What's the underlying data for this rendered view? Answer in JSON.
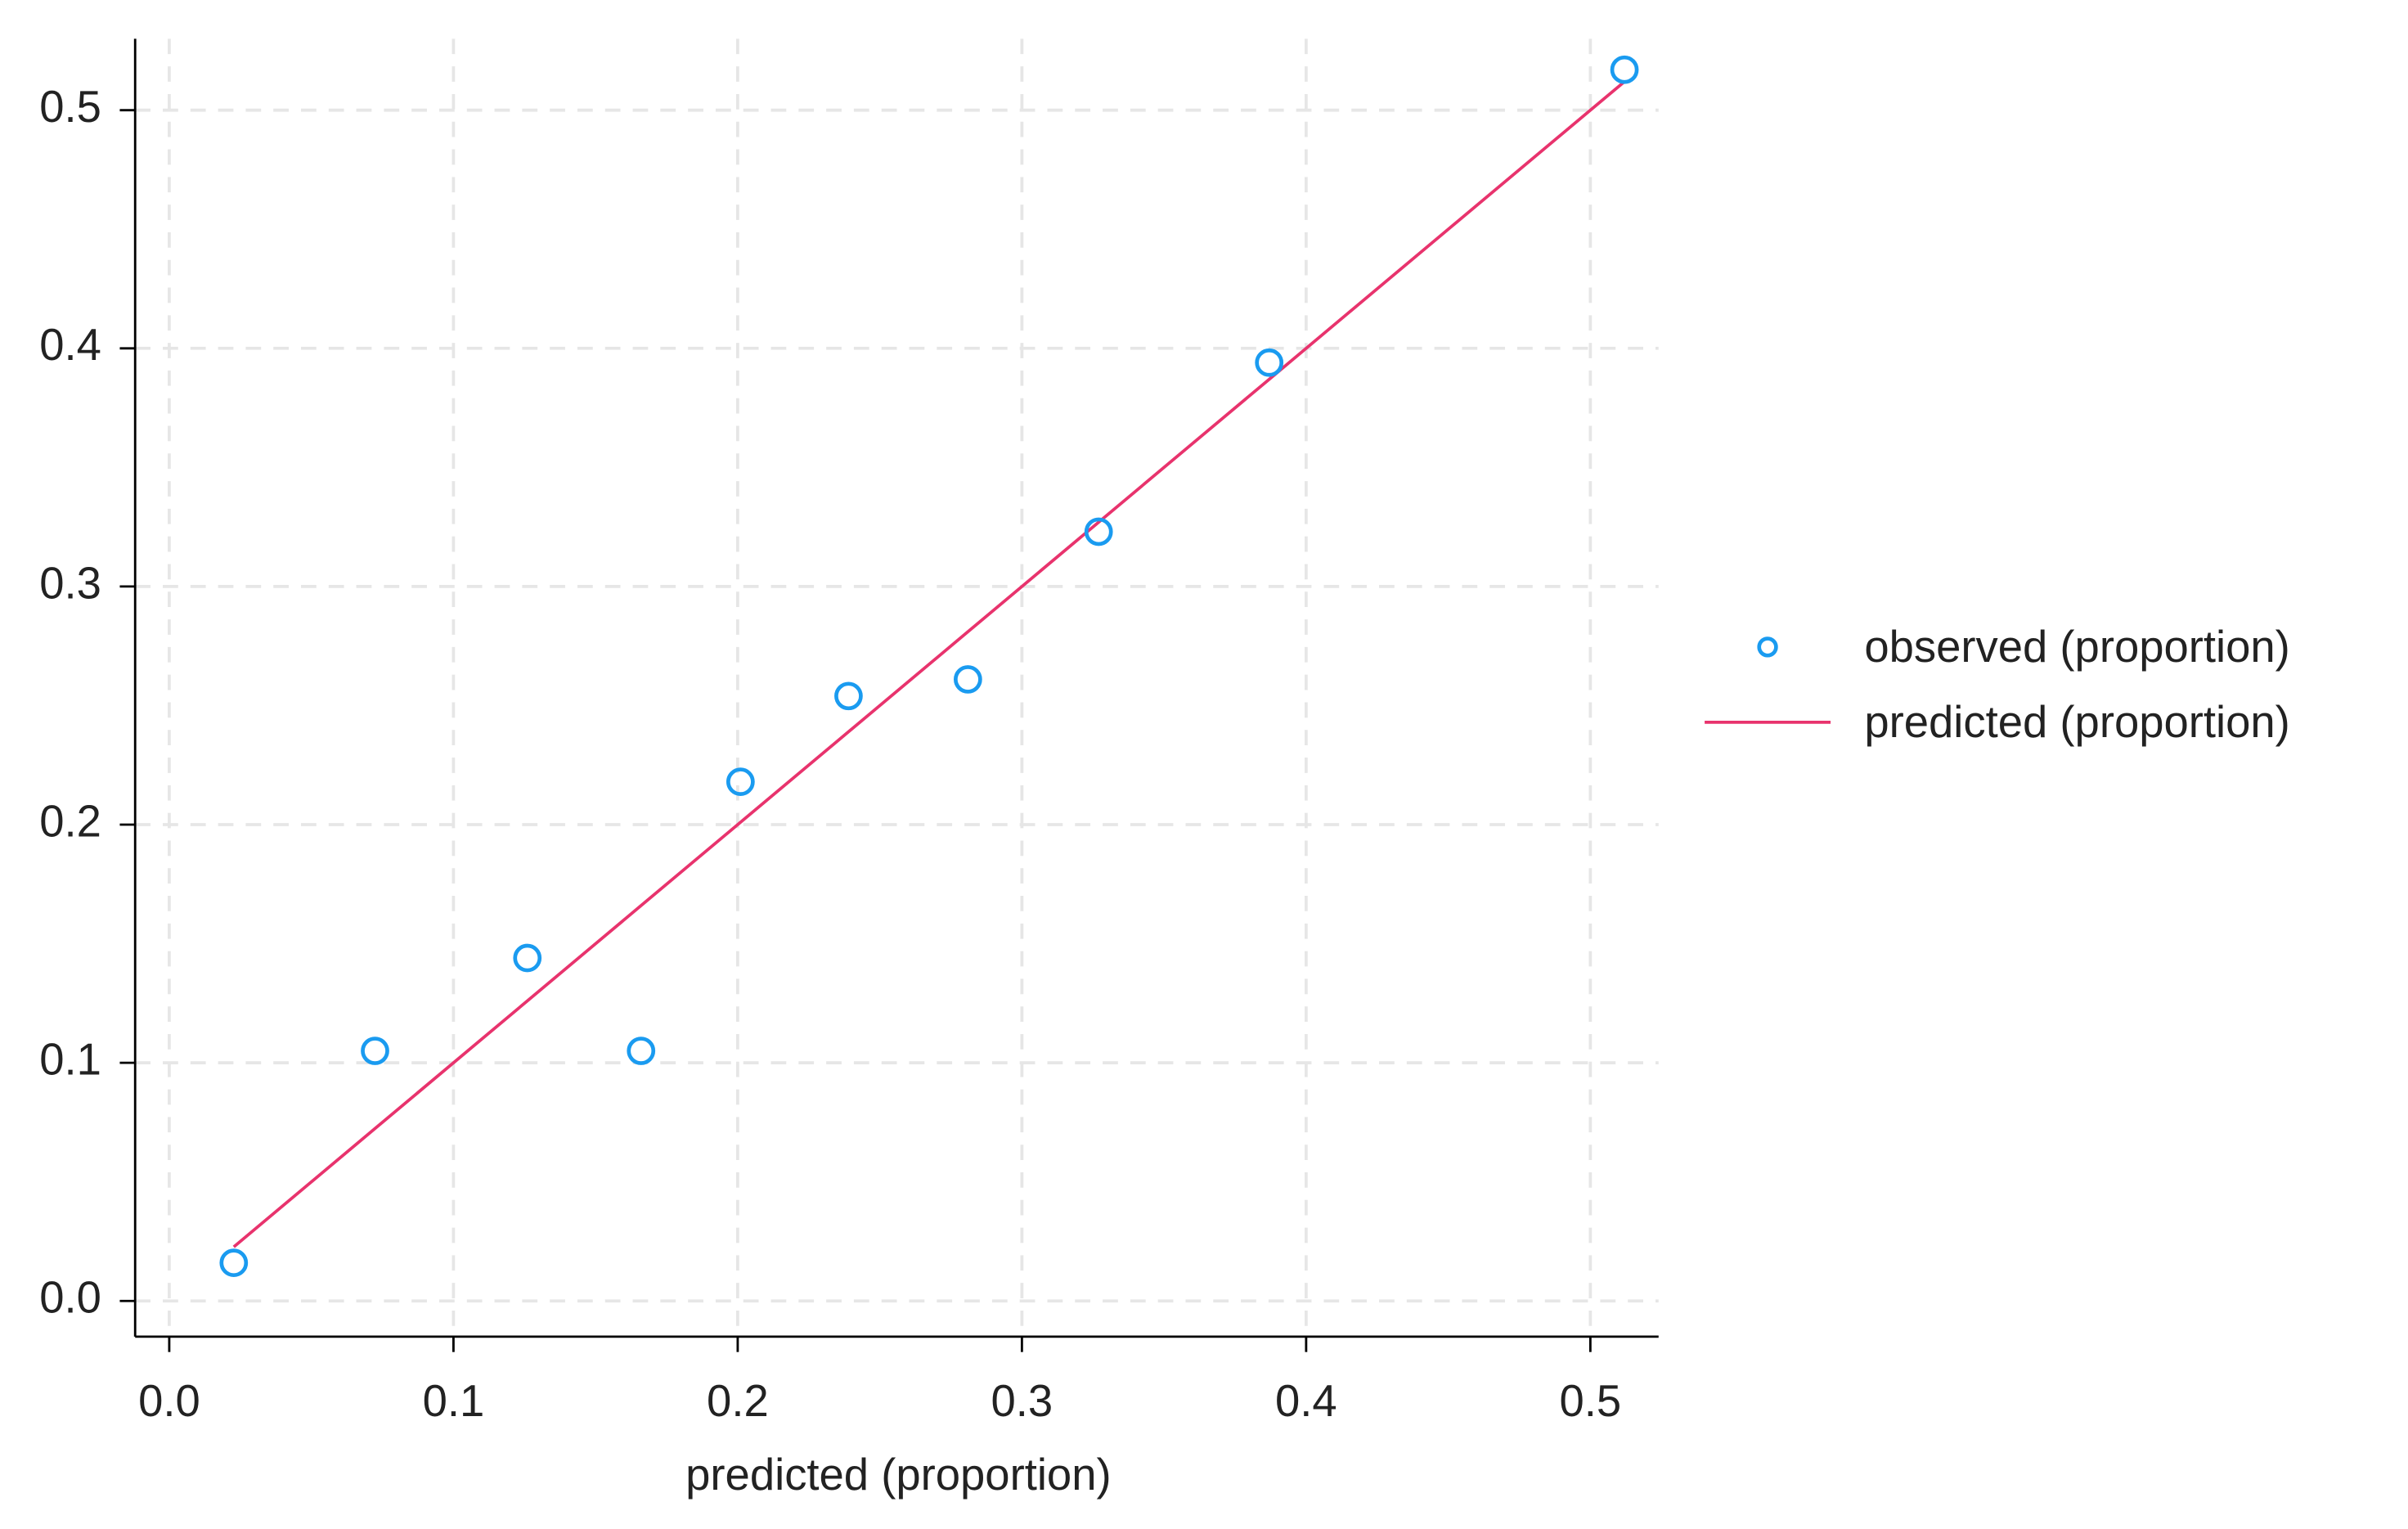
{
  "chart_data": {
    "type": "scatter",
    "xlabel": "predicted (proportion)",
    "x": [
      0.0227,
      0.0724,
      0.126,
      0.166,
      0.201,
      0.239,
      0.281,
      0.327,
      0.387,
      0.512
    ],
    "series": [
      {
        "name": "observed (proportion)",
        "color": "#1a9bf0",
        "values": [
          0.016,
          0.105,
          0.144,
          0.105,
          0.218,
          0.254,
          0.261,
          0.323,
          0.394,
          0.517
        ]
      },
      {
        "name": "predicted (proportion)",
        "color": "#e8336d",
        "values": [
          0.0227,
          0.0724,
          0.126,
          0.166,
          0.201,
          0.239,
          0.281,
          0.327,
          0.387,
          0.512
        ]
      }
    ],
    "xlim": [
      -0.012,
      0.524
    ],
    "ylim": [
      -0.015,
      0.53
    ],
    "xticks": [
      {
        "value": 0,
        "label": "0.0"
      },
      0.1,
      0.2,
      0.3,
      0.4,
      0.5
    ],
    "yticks": [
      {
        "value": 0,
        "label": "0.0"
      },
      0.1,
      0.2,
      0.3,
      0.4,
      0.5
    ],
    "grid": true,
    "legend": "right"
  }
}
